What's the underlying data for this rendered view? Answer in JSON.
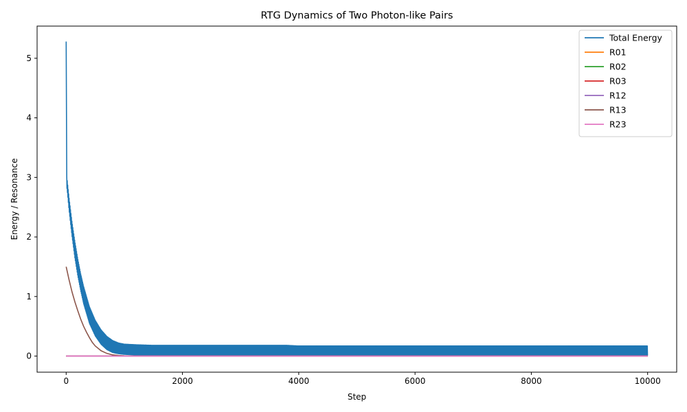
{
  "chart_data": {
    "type": "line",
    "title": "RTG Dynamics of Two Photon-like Pairs",
    "xlabel": "Step",
    "ylabel": "Energy / Resonance",
    "xlim": [
      -500,
      10500
    ],
    "ylim": [
      -0.27,
      5.54
    ],
    "xticks": [
      0,
      2000,
      4000,
      6000,
      8000,
      10000
    ],
    "xtick_labels": [
      "0",
      "2000",
      "4000",
      "6000",
      "8000",
      "10000"
    ],
    "yticks": [
      0,
      1,
      2,
      3,
      4,
      5
    ],
    "ytick_labels": [
      "0",
      "1",
      "2",
      "3",
      "4",
      "5"
    ],
    "grid": false,
    "legend_position": "top-right",
    "series": [
      {
        "name": "Total Energy",
        "color": "#1f77b4",
        "note_shape": "oscillating band",
        "x": [
          0,
          10,
          25,
          50,
          100,
          150,
          200,
          250,
          300,
          400,
          500,
          600,
          700,
          800,
          900,
          1000,
          1200,
          1500,
          2000,
          3000,
          3800,
          4000,
          6000,
          8000,
          10000
        ],
        "upper": [
          5.28,
          3.02,
          2.88,
          2.65,
          2.25,
          1.92,
          1.63,
          1.38,
          1.17,
          0.83,
          0.6,
          0.44,
          0.33,
          0.26,
          0.22,
          0.2,
          0.19,
          0.18,
          0.18,
          0.18,
          0.18,
          0.17,
          0.17,
          0.17,
          0.17
        ],
        "lower": [
          5.28,
          2.85,
          2.72,
          2.45,
          2.02,
          1.65,
          1.35,
          1.1,
          0.88,
          0.55,
          0.34,
          0.2,
          0.11,
          0.06,
          0.04,
          0.03,
          0.02,
          0.02,
          0.01,
          0.01,
          0.01,
          0.01,
          0.01,
          0.01,
          0.01
        ]
      },
      {
        "name": "R01",
        "color": "#ff7f0e",
        "x": [
          0,
          10000
        ],
        "values": [
          0,
          0
        ]
      },
      {
        "name": "R02",
        "color": "#2ca02c",
        "x": [
          0,
          10000
        ],
        "values": [
          0,
          0
        ]
      },
      {
        "name": "R03",
        "color": "#d62728",
        "x": [
          0,
          10000
        ],
        "values": [
          0,
          0
        ]
      },
      {
        "name": "R12",
        "color": "#9467bd",
        "x": [
          0,
          10000
        ],
        "values": [
          0,
          0
        ]
      },
      {
        "name": "R13",
        "color": "#8c564b",
        "x": [
          0,
          50,
          100,
          150,
          200,
          250,
          300,
          350,
          400,
          450,
          500,
          600,
          700,
          800,
          900,
          1000,
          1200,
          10000
        ],
        "values": [
          1.5,
          1.28,
          1.08,
          0.91,
          0.76,
          0.62,
          0.5,
          0.4,
          0.31,
          0.23,
          0.17,
          0.09,
          0.045,
          0.02,
          0.01,
          0.005,
          0.0,
          0.0
        ]
      },
      {
        "name": "R23",
        "color": "#e377c2",
        "x": [
          0,
          10000
        ],
        "values": [
          0,
          0
        ]
      }
    ]
  }
}
